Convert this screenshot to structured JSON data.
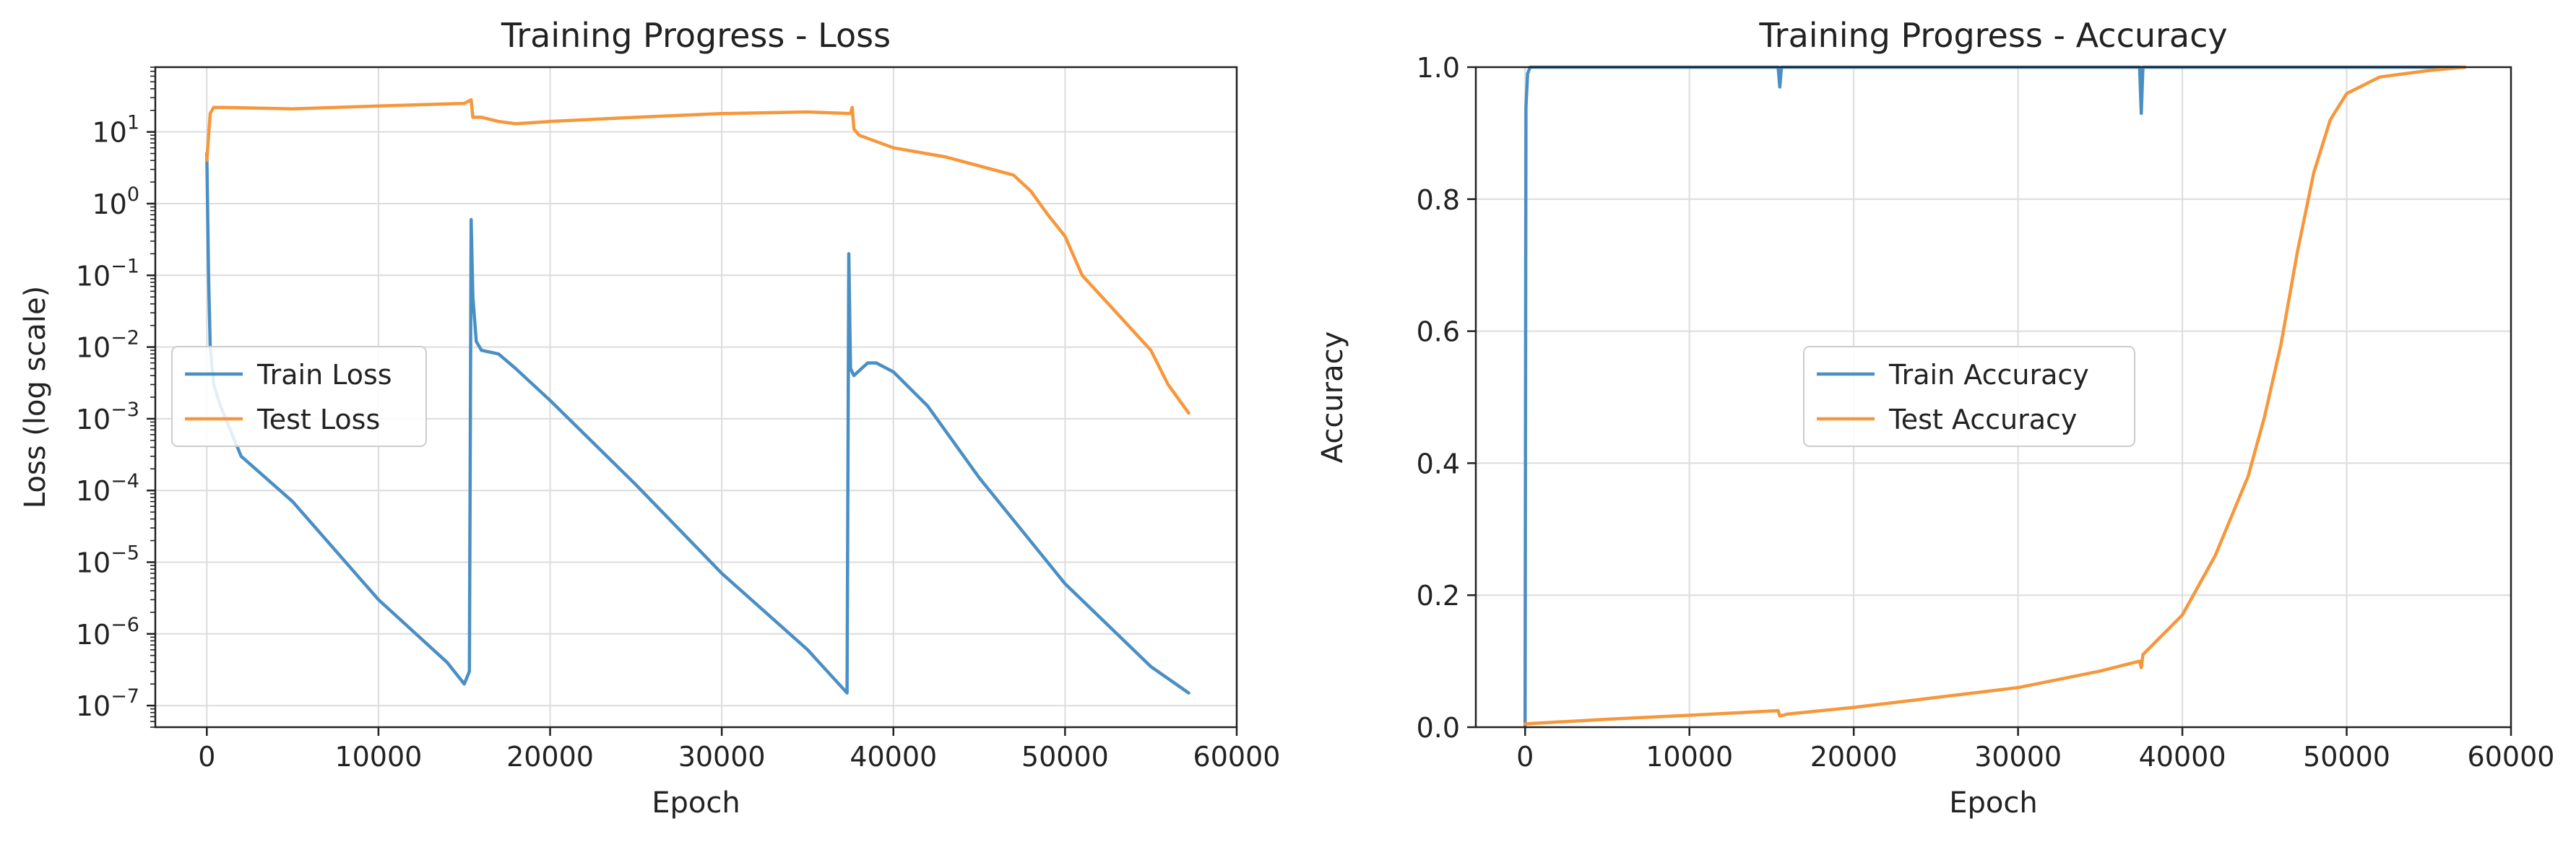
{
  "chart_data": [
    {
      "type": "line",
      "title": "Training Progress - Loss",
      "xlabel": "Epoch",
      "ylabel": "Loss (log scale)",
      "yscale": "log",
      "xlim": [
        -3000,
        60000
      ],
      "ylim": [
        5e-08,
        80
      ],
      "xticks": [
        0,
        10000,
        20000,
        30000,
        40000,
        50000,
        60000
      ],
      "xtick_labels": [
        "0",
        "10000",
        "20000",
        "30000",
        "40000",
        "50000",
        "60000"
      ],
      "yticks": [
        1e-07,
        1e-06,
        1e-05,
        0.0001,
        0.001,
        0.01,
        0.1,
        1,
        10
      ],
      "ytick_labels": [
        {
          "base": "10",
          "exp": "−7"
        },
        {
          "base": "10",
          "exp": "−6"
        },
        {
          "base": "10",
          "exp": "−5"
        },
        {
          "base": "10",
          "exp": "−4"
        },
        {
          "base": "10",
          "exp": "−3"
        },
        {
          "base": "10",
          "exp": "−2"
        },
        {
          "base": "10",
          "exp": "−1"
        },
        {
          "base": "10",
          "exp": "0"
        },
        {
          "base": "10",
          "exp": "1"
        }
      ],
      "grid": true,
      "legend_position": "center-left",
      "series": [
        {
          "name": "Train Loss",
          "color": "#4a8fc4",
          "points": [
            [
              0,
              5
            ],
            [
              100,
              0.1
            ],
            [
              200,
              0.01
            ],
            [
              400,
              0.003
            ],
            [
              800,
              0.0015
            ],
            [
              2000,
              0.0003
            ],
            [
              5000,
              7e-05
            ],
            [
              10000,
              3e-06
            ],
            [
              14000,
              4e-07
            ],
            [
              15000,
              2e-07
            ],
            [
              15300,
              3e-07
            ],
            [
              15400,
              0.6
            ],
            [
              15500,
              0.05
            ],
            [
              15700,
              0.012
            ],
            [
              16000,
              0.009
            ],
            [
              17000,
              0.008
            ],
            [
              18000,
              0.005
            ],
            [
              20000,
              0.0018
            ],
            [
              25000,
              0.00012
            ],
            [
              30000,
              7e-06
            ],
            [
              35000,
              6e-07
            ],
            [
              37300,
              1.5e-07
            ],
            [
              37400,
              0.2
            ],
            [
              37500,
              0.005
            ],
            [
              37700,
              0.004
            ],
            [
              38500,
              0.006
            ],
            [
              39000,
              0.006
            ],
            [
              40000,
              0.0045
            ],
            [
              42000,
              0.0015
            ],
            [
              45000,
              0.00015
            ],
            [
              50000,
              5e-06
            ],
            [
              55000,
              3.5e-07
            ],
            [
              57200,
              1.5e-07
            ]
          ]
        },
        {
          "name": "Test Loss",
          "color": "#f7973b",
          "points": [
            [
              0,
              4
            ],
            [
              200,
              18
            ],
            [
              400,
              22
            ],
            [
              1000,
              22
            ],
            [
              5000,
              21
            ],
            [
              10000,
              23
            ],
            [
              15000,
              25
            ],
            [
              15400,
              28
            ],
            [
              15500,
              16
            ],
            [
              16000,
              16
            ],
            [
              17000,
              14
            ],
            [
              18000,
              13
            ],
            [
              20000,
              14
            ],
            [
              25000,
              16
            ],
            [
              30000,
              18
            ],
            [
              35000,
              19
            ],
            [
              37500,
              18
            ],
            [
              37600,
              22
            ],
            [
              37700,
              11
            ],
            [
              38000,
              9
            ],
            [
              40000,
              6
            ],
            [
              43000,
              4.5
            ],
            [
              47000,
              2.5
            ],
            [
              48000,
              1.5
            ],
            [
              49000,
              0.7
            ],
            [
              50000,
              0.35
            ],
            [
              51000,
              0.1
            ],
            [
              53000,
              0.03
            ],
            [
              55000,
              0.009
            ],
            [
              56000,
              0.003
            ],
            [
              57200,
              0.0012
            ]
          ]
        }
      ]
    },
    {
      "type": "line",
      "title": "Training Progress - Accuracy",
      "xlabel": "Epoch",
      "ylabel": "Accuracy",
      "xlim": [
        -3000,
        60000
      ],
      "ylim": [
        0,
        1
      ],
      "xticks": [
        0,
        10000,
        20000,
        30000,
        40000,
        50000,
        60000
      ],
      "xtick_labels": [
        "0",
        "10000",
        "20000",
        "30000",
        "40000",
        "50000",
        "60000"
      ],
      "yticks": [
        0,
        0.2,
        0.4,
        0.6,
        0.8,
        1.0
      ],
      "ytick_labels": [
        "0.0",
        "0.2",
        "0.4",
        "0.6",
        "0.8",
        "1.0"
      ],
      "grid": true,
      "legend_position": "center",
      "series": [
        {
          "name": "Train Accuracy",
          "color": "#4a8fc4",
          "points": [
            [
              0,
              0
            ],
            [
              50,
              0.94
            ],
            [
              150,
              0.99
            ],
            [
              300,
              1
            ],
            [
              15400,
              1
            ],
            [
              15500,
              0.97
            ],
            [
              15600,
              1
            ],
            [
              37400,
              1
            ],
            [
              37500,
              0.93
            ],
            [
              37600,
              1
            ],
            [
              57200,
              1
            ]
          ]
        },
        {
          "name": "Test Accuracy",
          "color": "#f7973b",
          "points": [
            [
              0,
              0.005
            ],
            [
              5000,
              0.012
            ],
            [
              10000,
              0.018
            ],
            [
              15400,
              0.025
            ],
            [
              15500,
              0.017
            ],
            [
              16000,
              0.02
            ],
            [
              20000,
              0.03
            ],
            [
              25000,
              0.045
            ],
            [
              30000,
              0.06
            ],
            [
              35000,
              0.085
            ],
            [
              37400,
              0.1
            ],
            [
              37500,
              0.09
            ],
            [
              37600,
              0.11
            ],
            [
              38000,
              0.12
            ],
            [
              40000,
              0.17
            ],
            [
              42000,
              0.26
            ],
            [
              44000,
              0.38
            ],
            [
              45000,
              0.47
            ],
            [
              46000,
              0.58
            ],
            [
              47000,
              0.72
            ],
            [
              48000,
              0.84
            ],
            [
              49000,
              0.92
            ],
            [
              50000,
              0.96
            ],
            [
              52000,
              0.985
            ],
            [
              55000,
              0.995
            ],
            [
              57200,
              1
            ]
          ]
        }
      ]
    }
  ]
}
